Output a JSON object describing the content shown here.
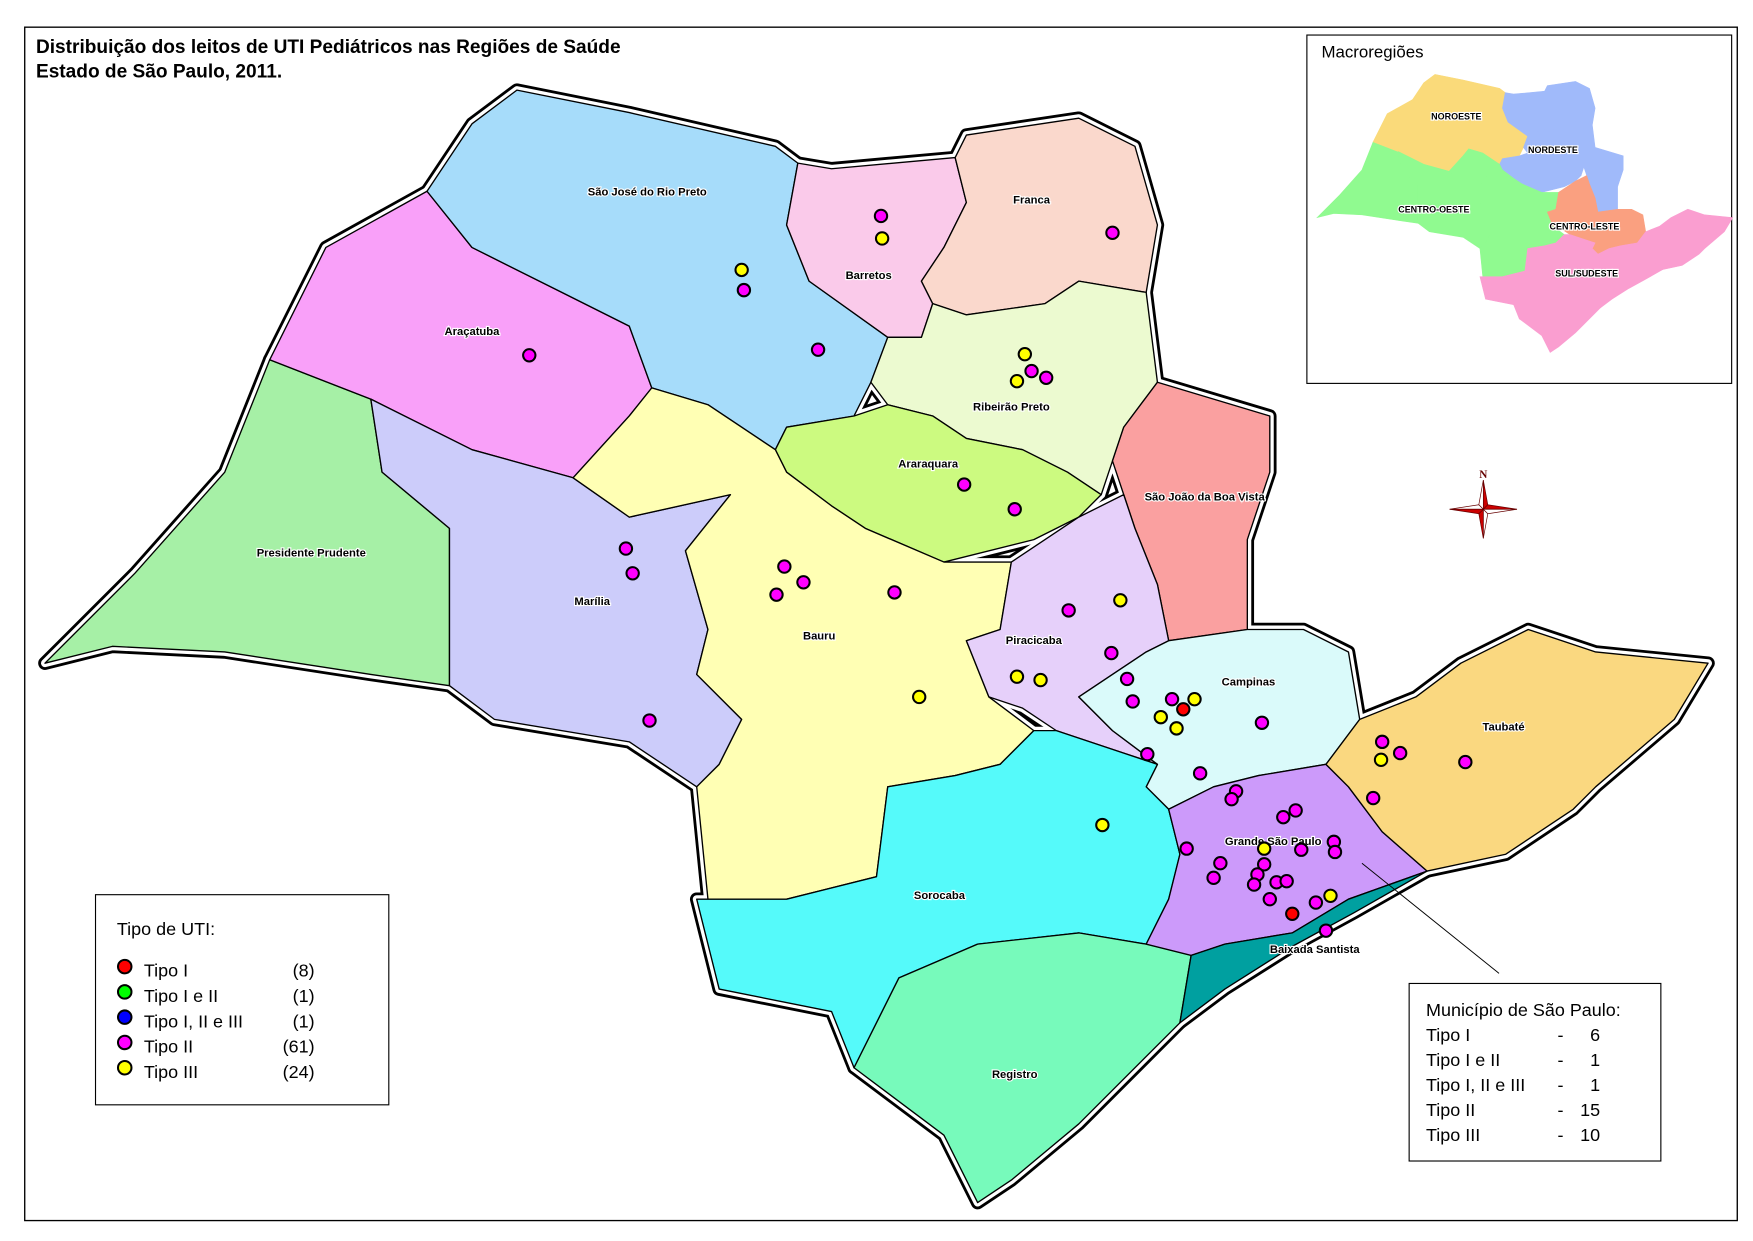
{
  "title": {
    "line1": "Distribuição dos leitos de UTI Pediátricos nas Regiões de Saúde",
    "line2": "Estado de São Paulo, 2011."
  },
  "regions": {
    "presidente_prudente": {
      "name": "Presidente Prudente",
      "color": "#a6f0a6"
    },
    "aracatuba": {
      "name": "Araçatuba",
      "color": "#f9a0f9"
    },
    "sao_jose_rio_preto": {
      "name": "São José do Rio Preto",
      "color": "#a6dcfa"
    },
    "barretos": {
      "name": "Barretos",
      "color": "#facaea"
    },
    "franca": {
      "name": "Franca",
      "color": "#fad8cc"
    },
    "ribeirao_preto": {
      "name": "Ribeirão Preto",
      "color": "#ecfad0"
    },
    "araraquara": {
      "name": "Araraquara",
      "color": "#ccfa80"
    },
    "sao_joao_boa_vista": {
      "name": "São João da Boa Vista",
      "color": "#faa0a0"
    },
    "marilia": {
      "name": "Marília",
      "color": "#ccccfa"
    },
    "bauru": {
      "name": "Bauru",
      "color": "#ffffb4"
    },
    "piracicaba": {
      "name": "Piracicaba",
      "color": "#e6d0fa"
    },
    "campinas": {
      "name": "Campinas",
      "color": "#dafafa"
    },
    "sorocaba": {
      "name": "Sorocaba",
      "color": "#55fafa"
    },
    "registro": {
      "name": "Registro",
      "color": "#77fabb"
    },
    "grande_sao_paulo": {
      "name": "Grande São Paulo",
      "color": "#cc9afa"
    },
    "baixada_santista": {
      "name": "Baixada Santista",
      "color": "#00a0a0"
    },
    "taubate": {
      "name": "Taubaté",
      "color": "#fad880"
    }
  },
  "legend": {
    "title": "Tipo de UTI:",
    "items": [
      {
        "label": "Tipo I",
        "count": "(8)",
        "color": "#ff0000"
      },
      {
        "label": "Tipo I e II",
        "count": "(1)",
        "color": "#00ff00"
      },
      {
        "label": "Tipo I, II e III",
        "count": "(1)",
        "color": "#0000ff"
      },
      {
        "label": "Tipo II",
        "count": "(61)",
        "color": "#ff00ff"
      },
      {
        "label": "Tipo III",
        "count": "(24)",
        "color": "#ffff00"
      }
    ]
  },
  "municipio": {
    "title": "Município de São Paulo:",
    "rows": [
      {
        "label": "Tipo I",
        "sep": "-",
        "value": "6"
      },
      {
        "label": "Tipo I e II",
        "sep": "-",
        "value": "1"
      },
      {
        "label": "Tipo I, II e III",
        "sep": "-",
        "value": "1"
      },
      {
        "label": "Tipo II",
        "sep": "-",
        "value": "15"
      },
      {
        "label": "Tipo III",
        "sep": "-",
        "value": "10"
      }
    ]
  },
  "inset": {
    "title": "Macroregiões",
    "macroregions": {
      "noroeste": {
        "name": "NOROESTE",
        "color": "#fada7a"
      },
      "nordeste": {
        "name": "NORDESTE",
        "color": "#a0bafa"
      },
      "centro_oeste": {
        "name": "CENTRO-OESTE",
        "color": "#90fa90"
      },
      "centro_leste": {
        "name": "CENTRO-LESTE",
        "color": "#faa080"
      },
      "sul_sudeste": {
        "name": "SUL/SUDESTE",
        "color": "#fa9ed0"
      }
    }
  },
  "compass": {
    "north_label": "N"
  }
}
